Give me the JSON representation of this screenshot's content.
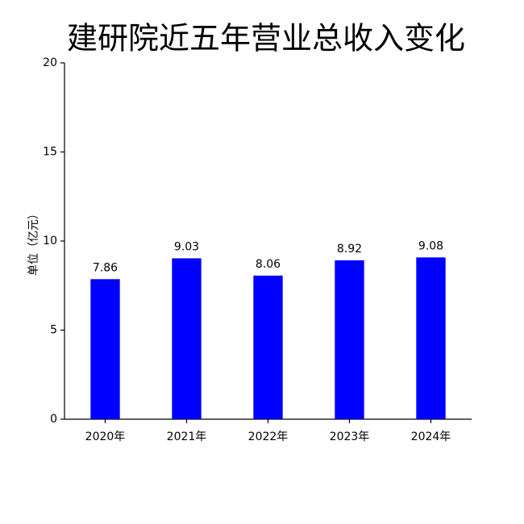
{
  "chart_data": {
    "type": "bar",
    "title": "建研院近五年营业总收入变化",
    "y_label": "单位（亿元）",
    "categories": [
      "2020年",
      "2021年",
      "2022年",
      "2023年",
      "2024年"
    ],
    "values": [
      7.86,
      9.03,
      8.06,
      8.92,
      9.08
    ],
    "color": "#0000ff",
    "ylim": [
      0,
      20
    ],
    "yticks": [
      0,
      5,
      10,
      15,
      20
    ],
    "grid": false
  }
}
